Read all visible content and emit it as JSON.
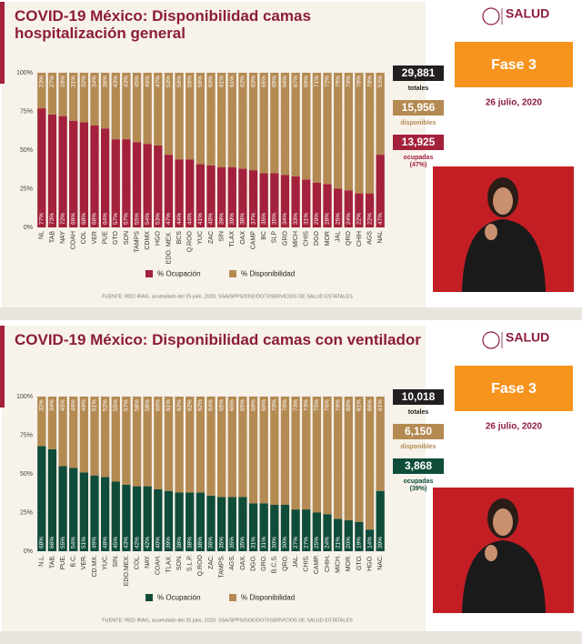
{
  "chart_data": [
    {
      "type": "bar",
      "stacked": true,
      "title": "COVID-19 México: Disponibilidad camas hospitalización general",
      "categories": [
        "NL",
        "TAB",
        "NAY",
        "COAH",
        "COL",
        "VER",
        "PUE",
        "GTO",
        "SON",
        "TAMPS",
        "CDMX",
        "HGO",
        "EDO. MEX.",
        "BCS",
        "Q.ROO",
        "YUC",
        "ZAC",
        "SIN",
        "TLAX",
        "OAX",
        "CAMP",
        "BC",
        "SLP",
        "GRO",
        "MICH",
        "CHIS",
        "DGO",
        "MOR",
        "JAL",
        "QRO",
        "CHIH",
        "AGS",
        "NAL"
      ],
      "series": [
        {
          "name": "% Ocupación",
          "color": "#a3213b",
          "values": [
            77,
            73,
            72,
            69,
            68,
            66,
            64,
            57,
            57,
            55,
            54,
            53,
            47,
            44,
            44,
            41,
            40,
            39,
            39,
            38,
            37,
            35,
            35,
            34,
            33,
            31,
            29,
            28,
            25,
            24,
            22,
            22,
            47
          ],
          "value_labels": [
            "77%",
            "73%",
            "72%",
            "69%",
            "68%",
            "66%",
            "64%",
            "57%",
            "57%",
            "55%",
            "54%",
            "53%",
            "47%",
            "44%",
            "44%",
            "41%",
            "40%",
            "39%",
            "39%",
            "38%",
            "37%",
            "35%",
            "35%",
            "34%",
            "33%",
            "31%",
            "29%",
            "28%",
            "25%",
            "24%",
            "22%",
            "22%",
            "47%"
          ]
        },
        {
          "name": "% Disponibilidad",
          "color": "#b48a53",
          "values": [
            23,
            27,
            28,
            31,
            32,
            34,
            36,
            43,
            43,
            45,
            46,
            47,
            53,
            56,
            56,
            59,
            60,
            61,
            61,
            62,
            63,
            65,
            65,
            66,
            67,
            69,
            71,
            72,
            75,
            76,
            78,
            78,
            53
          ],
          "value_labels": [
            "23%",
            "27%",
            "28%",
            "31%",
            "32%",
            "34%",
            "36%",
            "43%",
            "43%",
            "45%",
            "46%",
            "47%",
            "53%",
            "56%",
            "56%",
            "59%",
            "60%",
            "61%",
            "61%",
            "62%",
            "63%",
            "65%",
            "65%",
            "66%",
            "67%",
            "69%",
            "71%",
            "72%",
            "75%",
            "76%",
            "78%",
            "78%",
            "53%"
          ]
        }
      ],
      "ylim": [
        0,
        100
      ],
      "yticks": [
        {
          "value": 0,
          "label": "0%"
        },
        {
          "value": 25,
          "label": "25%"
        },
        {
          "value": 50,
          "label": "50%"
        },
        {
          "value": 75,
          "label": "75%"
        },
        {
          "value": 100,
          "label": "100%"
        }
      ],
      "grid": true,
      "stats": [
        {
          "value": "29,881",
          "label": "totales",
          "color": "#231f20",
          "text_color": "#231f20"
        },
        {
          "value": "15,956",
          "label": "disponibles",
          "color": "#b48a53",
          "text_color": "#b48a53"
        },
        {
          "value": "13,925",
          "label": "ocupadas",
          "note": "(47%)",
          "color": "#a3213b",
          "text_color": "#a3213b"
        }
      ],
      "fase": "Fase 3",
      "date": "26 julio, 2020",
      "logo": "SALUD",
      "source": "FUENTE: RED IRAG, acumulado del 25 julio, 2020.   SSA/SPPS/DGE/DGTI/SERVICIOS DE SALUD ESTATALES"
    },
    {
      "type": "bar",
      "stacked": true,
      "title": "COVID-19 México: Disponibilidad camas con ventilador",
      "categories": [
        "N.L.",
        "TAB.",
        "PUE.",
        "B.C.",
        "VER.",
        "CD.MX.",
        "YUC.",
        "SIN.",
        "EDO.MEX.",
        "COL.",
        "NAY.",
        "COAH.",
        "TLAX.",
        "SON.",
        "S.L.P.",
        "Q.ROO",
        "ZAC.",
        "TAMPS.",
        "AGS.",
        "OAX.",
        "DGO.",
        "GRO.",
        "B.C.S.",
        "QRO.",
        "JAL.",
        "CHIS.",
        "CAMP.",
        "CHIH.",
        "MICH.",
        "MOR.",
        "GTO.",
        "HGO.",
        "NAC."
      ],
      "series": [
        {
          "name": "% Ocupación",
          "color": "#0f4d3a",
          "values": [
            68,
            66,
            55,
            54,
            51,
            49,
            48,
            45,
            43,
            42,
            42,
            40,
            39,
            38,
            38,
            38,
            36,
            35,
            35,
            35,
            31,
            31,
            30,
            30,
            27,
            27,
            25,
            24,
            21,
            20,
            19,
            14,
            39
          ],
          "value_labels": [
            "68%",
            "66%",
            "55%",
            "54%",
            "51%",
            "49%",
            "48%",
            "45%",
            "43%",
            "42%",
            "42%",
            "40%",
            "39%",
            "38%",
            "38%",
            "38%",
            "36%",
            "35%",
            "35%",
            "35%",
            "31%",
            "31%",
            "30%",
            "30%",
            "27%",
            "27%",
            "25%",
            "24%",
            "21%",
            "20%",
            "19%",
            "14%",
            "39%"
          ]
        },
        {
          "name": "% Disponibilidad",
          "color": "#b48a53",
          "values": [
            32,
            34,
            45,
            46,
            49,
            51,
            52,
            55,
            57,
            58,
            58,
            60,
            61,
            62,
            62,
            62,
            64,
            65,
            65,
            65,
            69,
            69,
            70,
            70,
            73,
            73,
            75,
            76,
            79,
            80,
            81,
            86,
            61
          ],
          "value_labels": [
            "32%",
            "34%",
            "45%",
            "46%",
            "49%",
            "51%",
            "52%",
            "55%",
            "57%",
            "58%",
            "58%",
            "60%",
            "61%",
            "62%",
            "62%",
            "62%",
            "64%",
            "65%",
            "65%",
            "65%",
            "69%",
            "69%",
            "70%",
            "70%",
            "73%",
            "73%",
            "75%",
            "76%",
            "79%",
            "80%",
            "81%",
            "86%",
            "61%"
          ]
        }
      ],
      "ylim": [
        0,
        100
      ],
      "yticks": [
        {
          "value": 0,
          "label": "0%"
        },
        {
          "value": 25,
          "label": "25%"
        },
        {
          "value": 50,
          "label": "50%"
        },
        {
          "value": 75,
          "label": "75%"
        },
        {
          "value": 100,
          "label": "100%"
        }
      ],
      "grid": true,
      "stats": [
        {
          "value": "10,018",
          "label": "totales",
          "color": "#231f20",
          "text_color": "#231f20"
        },
        {
          "value": "6,150",
          "label": "disponibles",
          "color": "#b48a53",
          "text_color": "#b48a53"
        },
        {
          "value": "3,868",
          "label": "ocupadas",
          "note": "(39%)",
          "color": "#0f4d3a",
          "text_color": "#0f4d3a"
        }
      ],
      "fase": "Fase 3",
      "date": "26 julio, 2020",
      "logo": "SALUD",
      "source": "FUENTE: RED IRAG, acumulado del 25 julio, 2020.   SSA/SPPS/DGE/DGTI/SERVICIOS DE SALUD ESTATALES"
    }
  ]
}
